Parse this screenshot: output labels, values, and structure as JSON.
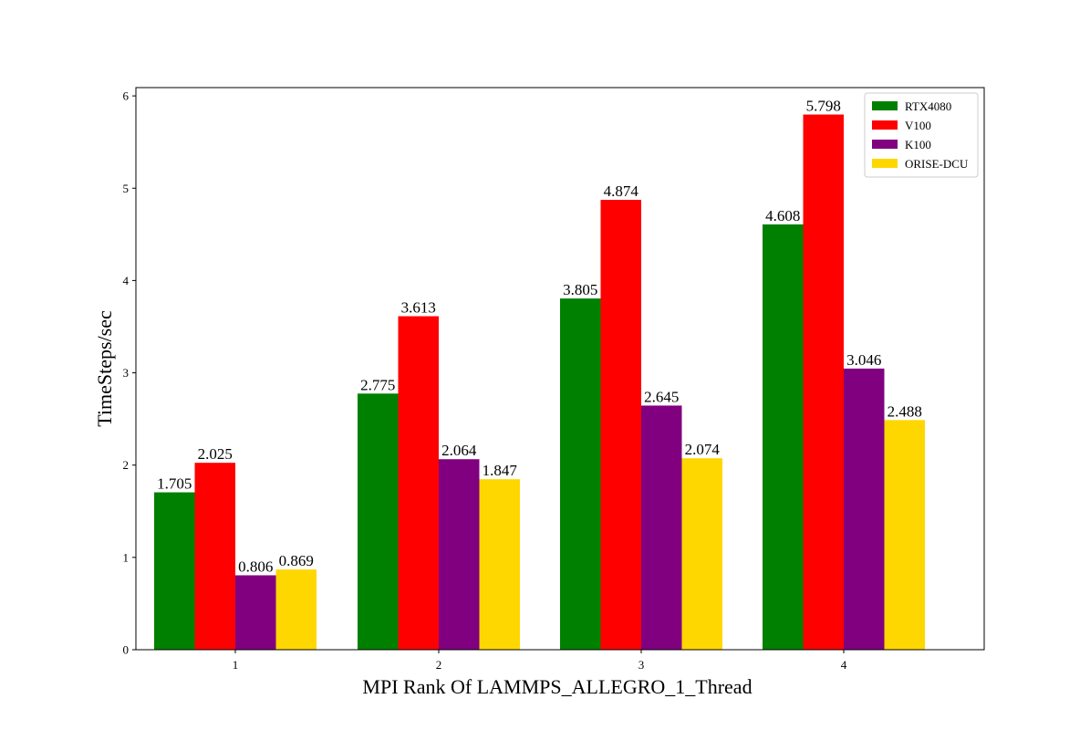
{
  "chart_data": {
    "type": "bar",
    "title": "",
    "xlabel": "MPI Rank Of LAMMPS_ALLEGRO_1_Thread",
    "ylabel": "TimeSteps/sec",
    "categories": [
      "1",
      "2",
      "3",
      "4"
    ],
    "ylim": [
      0,
      6.09
    ],
    "yticks": [
      0,
      1,
      2,
      3,
      4,
      5,
      6
    ],
    "grid": false,
    "legend_position": "top-right",
    "series": [
      {
        "name": "RTX4080",
        "color": "#008000",
        "values": [
          1.705,
          2.775,
          3.805,
          4.608
        ],
        "labels": [
          "1.705",
          "2.775",
          "3.805",
          "4.608"
        ]
      },
      {
        "name": "V100",
        "color": "#ff0000",
        "values": [
          2.025,
          3.613,
          4.874,
          5.798
        ],
        "labels": [
          "2.025",
          "3.613",
          "4.874",
          "5.798"
        ]
      },
      {
        "name": "K100",
        "color": "#800080",
        "values": [
          0.806,
          2.064,
          2.645,
          3.046
        ],
        "labels": [
          "0.806",
          "2.064",
          "2.645",
          "3.046"
        ]
      },
      {
        "name": "ORISE-DCU",
        "color": "#ffd700",
        "values": [
          0.869,
          1.847,
          2.074,
          2.488
        ],
        "labels": [
          "0.869",
          "1.847",
          "2.074",
          "2.488"
        ]
      }
    ]
  }
}
